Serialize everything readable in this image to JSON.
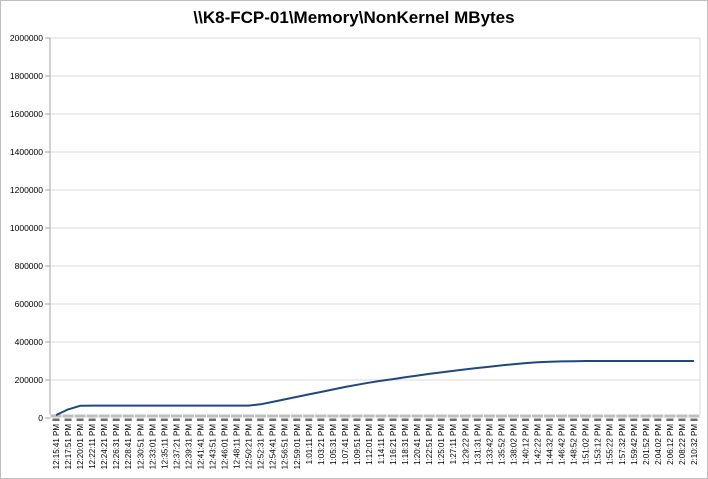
{
  "chart_data": {
    "type": "line",
    "title": "\\\\K8-FCP-01\\Memory\\NonKernel MBytes",
    "series_name": "\\\\K8-FCP-01\\Memory\\NonKernel MBytes",
    "legend": "none",
    "grid": "horizontal",
    "ylim": [
      0,
      2000000
    ],
    "ytick_step": 200000,
    "ytick_labels": [
      "0",
      "200000",
      "400000",
      "600000",
      "800000",
      "1000000",
      "1200000",
      "1400000",
      "1600000",
      "1800000",
      "2000000"
    ],
    "categories": [
      "12:15:41 PM",
      "12:17:51 PM",
      "12:20:01 PM",
      "12:22:11 PM",
      "12:24:21 PM",
      "12:26:31 PM",
      "12:28:41 PM",
      "12:30:51 PM",
      "12:33:01 PM",
      "12:35:11 PM",
      "12:37:21 PM",
      "12:39:31 PM",
      "12:41:41 PM",
      "12:43:51 PM",
      "12:46:01 PM",
      "12:48:11 PM",
      "12:50:21 PM",
      "12:52:31 PM",
      "12:54:41 PM",
      "12:56:51 PM",
      "12:59:01 PM",
      "1:01:11 PM",
      "1:03:21 PM",
      "1:05:31 PM",
      "1:07:41 PM",
      "1:09:51 PM",
      "1:12:01 PM",
      "1:14:11 PM",
      "1:16:21 PM",
      "1:18:31 PM",
      "1:20:41 PM",
      "1:22:51 PM",
      "1:25:01 PM",
      "1:27:11 PM",
      "1:29:22 PM",
      "1:31:31 PM",
      "1:33:42 PM",
      "1:35:52 PM",
      "1:38:02 PM",
      "1:40:12 PM",
      "1:42:22 PM",
      "1:44:32 PM",
      "1:46:42 PM",
      "1:48:52 PM",
      "1:51:02 PM",
      "1:53:12 PM",
      "1:55:22 PM",
      "1:57:32 PM",
      "1:59:42 PM",
      "2:01:52 PM",
      "2:04:02 PM",
      "2:06:12 PM",
      "2:08:22 PM",
      "2:10:32 PM"
    ],
    "values": [
      15000,
      45000,
      64000,
      65000,
      65000,
      65000,
      65000,
      65000,
      65000,
      65000,
      65000,
      65000,
      65000,
      65000,
      65000,
      65000,
      65000,
      72000,
      85000,
      98000,
      111000,
      124000,
      137000,
      150000,
      163000,
      175000,
      186000,
      196000,
      205000,
      214000,
      223000,
      232000,
      240000,
      248000,
      256000,
      263000,
      270000,
      277000,
      283000,
      289000,
      293000,
      296000,
      298000,
      299000,
      300000,
      300000,
      300000,
      300000,
      300000,
      300000,
      300000,
      300000,
      300000,
      300000
    ],
    "colors": {
      "line": "#1F497D",
      "gridline": "#D9D9D9",
      "plot_border": "#D9D9D9",
      "axis_line": "#A6A6A6",
      "axis_band": "#BFBFBF",
      "axis_tick": "#6E6E6E",
      "text": "#000000"
    }
  }
}
